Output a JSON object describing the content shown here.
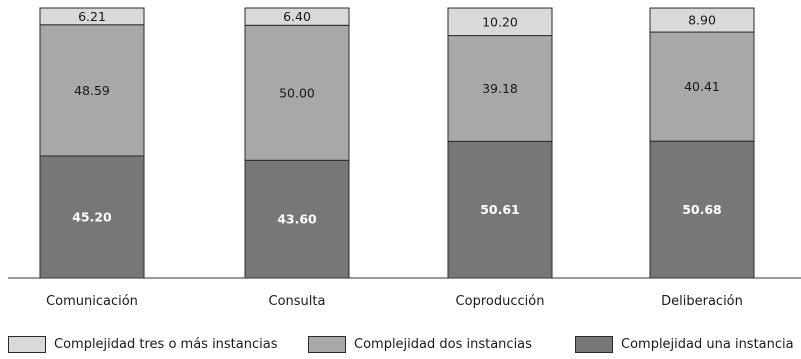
{
  "chart_data": {
    "type": "bar",
    "stacked": true,
    "categories": [
      "Comunicación",
      "Consulta",
      "Coproducción",
      "Deliberación"
    ],
    "series": [
      {
        "name": "Complejidad una instancia",
        "values": [
          45.2,
          43.6,
          50.61,
          50.68
        ],
        "color": "#77777a",
        "label_color": "#ffffff",
        "bold": true
      },
      {
        "name": "Complejidad dos instancias",
        "values": [
          48.59,
          50.0,
          39.18,
          40.41
        ],
        "color": "#a8a8ab",
        "label_color": "#1a1a1a",
        "bold": false
      },
      {
        "name": "Complejidad tres o más instancias",
        "values": [
          6.21,
          6.4,
          10.2,
          8.9
        ],
        "color": "#d9d9db",
        "label_color": "#1a1a1a",
        "bold": false
      }
    ],
    "value_labels": [
      [
        "45.20",
        "43.60",
        "50.61",
        "50.68"
      ],
      [
        "48.59",
        "50.00",
        "39.18",
        "40.41"
      ],
      [
        "6.21",
        "6.40",
        "10.20",
        "8.90"
      ]
    ],
    "ylim": [
      0,
      100
    ],
    "axis_color": "#333333",
    "legend": [
      {
        "label": "Complejidad tres o más instancias",
        "color": "#d9d9db"
      },
      {
        "label": "Complejidad dos instancias",
        "color": "#a8a8ab"
      },
      {
        "label": "Complejidad una instancia",
        "color": "#77777a"
      }
    ],
    "legend_position": "bottom"
  }
}
